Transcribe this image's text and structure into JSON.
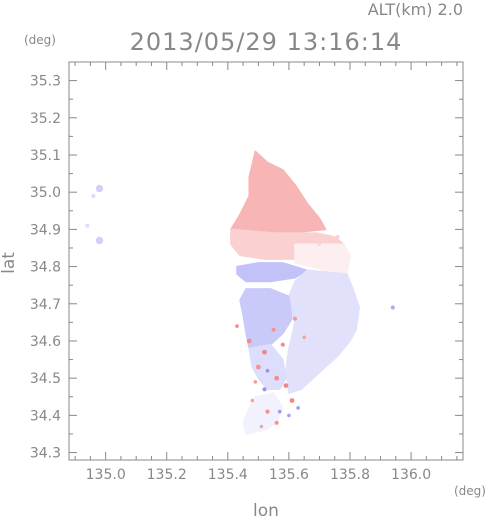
{
  "header": {
    "altitude_label": "ALT(km) 2.0",
    "timestamp": "2013/05/29 13:16:14"
  },
  "chart_data": {
    "type": "heatmap",
    "title": "2013/05/29 13:16:14",
    "subtitle": "ALT(km) 2.0",
    "xlabel": "lon",
    "ylabel": "lat",
    "x_unit": "(deg)",
    "y_unit": "(deg)",
    "xlim": [
      134.88,
      136.17
    ],
    "ylim": [
      34.28,
      35.35
    ],
    "x_ticks": [
      135.0,
      135.2,
      135.4,
      135.6,
      135.8,
      136.0
    ],
    "x_tick_labels": [
      "135.0",
      "135.2",
      "135.4",
      "135.6",
      "135.8",
      "136.0"
    ],
    "y_ticks": [
      34.3,
      34.4,
      34.5,
      34.6,
      34.7,
      34.8,
      34.9,
      35.0,
      35.1,
      35.2,
      35.3
    ],
    "y_tick_labels": [
      "34.3",
      "34.4",
      "34.5",
      "34.6",
      "34.7",
      "34.8",
      "34.9",
      "35.0",
      "35.1",
      "35.2",
      "35.3"
    ],
    "grid": false,
    "colors": {
      "positive": "#f28b8b",
      "negative": "#8b8bf2",
      "axis": "#888888"
    },
    "regions": [
      {
        "sign": "positive",
        "intensity": 0.55,
        "polygon": [
          [
            135.49,
            35.11
          ],
          [
            135.53,
            35.08
          ],
          [
            135.58,
            35.06
          ],
          [
            135.62,
            35.02
          ],
          [
            135.66,
            34.97
          ],
          [
            135.7,
            34.93
          ],
          [
            135.72,
            34.9
          ],
          [
            135.6,
            34.89
          ],
          [
            135.48,
            34.89
          ],
          [
            135.41,
            34.9
          ],
          [
            135.44,
            34.94
          ],
          [
            135.47,
            34.99
          ],
          [
            135.47,
            35.04
          ]
        ]
      },
      {
        "sign": "positive",
        "intensity": 0.35,
        "polygon": [
          [
            135.41,
            34.9
          ],
          [
            135.56,
            34.89
          ],
          [
            135.69,
            34.89
          ],
          [
            135.75,
            34.88
          ],
          [
            135.78,
            34.86
          ],
          [
            135.78,
            34.82
          ],
          [
            135.66,
            34.82
          ],
          [
            135.52,
            34.82
          ],
          [
            135.44,
            34.83
          ],
          [
            135.41,
            34.86
          ]
        ]
      },
      {
        "sign": "positive",
        "intensity": 0.12,
        "polygon": [
          [
            135.62,
            34.86
          ],
          [
            135.78,
            34.86
          ],
          [
            135.8,
            34.83
          ],
          [
            135.79,
            34.78
          ],
          [
            135.72,
            34.79
          ],
          [
            135.62,
            34.81
          ]
        ]
      },
      {
        "sign": "negative",
        "intensity": 0.45,
        "polygon": [
          [
            135.43,
            34.8
          ],
          [
            135.5,
            34.81
          ],
          [
            135.58,
            34.81
          ],
          [
            135.66,
            34.79
          ],
          [
            135.62,
            34.77
          ],
          [
            135.54,
            34.76
          ],
          [
            135.46,
            34.76
          ],
          [
            135.43,
            34.78
          ]
        ]
      },
      {
        "sign": "negative",
        "intensity": 0.22,
        "polygon": [
          [
            135.66,
            34.79
          ],
          [
            135.79,
            34.78
          ],
          [
            135.81,
            34.74
          ],
          [
            135.83,
            34.69
          ],
          [
            135.82,
            34.63
          ],
          [
            135.8,
            34.6
          ],
          [
            135.76,
            34.56
          ],
          [
            135.72,
            34.53
          ],
          [
            135.68,
            34.5
          ],
          [
            135.64,
            34.47
          ],
          [
            135.6,
            34.46
          ],
          [
            135.59,
            34.52
          ],
          [
            135.6,
            34.58
          ],
          [
            135.62,
            34.65
          ],
          [
            135.6,
            34.72
          ],
          [
            135.62,
            34.76
          ]
        ]
      },
      {
        "sign": "negative",
        "intensity": 0.4,
        "polygon": [
          [
            135.46,
            34.74
          ],
          [
            135.54,
            34.74
          ],
          [
            135.6,
            34.72
          ],
          [
            135.61,
            34.66
          ],
          [
            135.58,
            34.62
          ],
          [
            135.54,
            34.59
          ],
          [
            135.5,
            34.57
          ],
          [
            135.47,
            34.58
          ],
          [
            135.46,
            34.62
          ],
          [
            135.45,
            34.67
          ],
          [
            135.44,
            34.71
          ]
        ]
      },
      {
        "sign": "negative",
        "intensity": 0.25,
        "polygon": [
          [
            135.47,
            34.58
          ],
          [
            135.54,
            34.59
          ],
          [
            135.58,
            34.55
          ],
          [
            135.59,
            34.5
          ],
          [
            135.57,
            34.47
          ],
          [
            135.53,
            34.47
          ],
          [
            135.5,
            34.5
          ],
          [
            135.48,
            34.53
          ]
        ]
      },
      {
        "sign": "negative",
        "intensity": 0.1,
        "polygon": [
          [
            135.49,
            34.45
          ],
          [
            135.55,
            34.46
          ],
          [
            135.58,
            34.42
          ],
          [
            135.56,
            34.38
          ],
          [
            135.52,
            34.36
          ],
          [
            135.46,
            34.35
          ],
          [
            135.45,
            34.38
          ],
          [
            135.47,
            34.42
          ]
        ]
      }
    ],
    "cells": [
      {
        "x": 134.98,
        "y": 35.01,
        "r": 0.012,
        "sign": "negative",
        "intensity": 0.35
      },
      {
        "x": 134.96,
        "y": 34.99,
        "r": 0.007,
        "sign": "negative",
        "intensity": 0.25
      },
      {
        "x": 134.94,
        "y": 34.91,
        "r": 0.007,
        "sign": "negative",
        "intensity": 0.25
      },
      {
        "x": 134.98,
        "y": 34.87,
        "r": 0.012,
        "sign": "negative",
        "intensity": 0.35
      },
      {
        "x": 135.94,
        "y": 34.69,
        "r": 0.007,
        "sign": "negative",
        "intensity": 0.6
      },
      {
        "x": 135.43,
        "y": 34.64,
        "r": 0.006,
        "sign": "positive",
        "intensity": 0.9
      },
      {
        "x": 135.47,
        "y": 34.6,
        "r": 0.008,
        "sign": "positive",
        "intensity": 0.85
      },
      {
        "x": 135.52,
        "y": 34.57,
        "r": 0.008,
        "sign": "positive",
        "intensity": 0.9
      },
      {
        "x": 135.55,
        "y": 34.63,
        "r": 0.007,
        "sign": "positive",
        "intensity": 0.8
      },
      {
        "x": 135.58,
        "y": 34.59,
        "r": 0.007,
        "sign": "positive",
        "intensity": 0.85
      },
      {
        "x": 135.5,
        "y": 34.53,
        "r": 0.008,
        "sign": "positive",
        "intensity": 0.8
      },
      {
        "x": 135.53,
        "y": 34.52,
        "r": 0.006,
        "sign": "negative",
        "intensity": 0.8
      },
      {
        "x": 135.56,
        "y": 34.5,
        "r": 0.008,
        "sign": "positive",
        "intensity": 0.85
      },
      {
        "x": 135.59,
        "y": 34.48,
        "r": 0.008,
        "sign": "positive",
        "intensity": 0.9
      },
      {
        "x": 135.61,
        "y": 34.44,
        "r": 0.008,
        "sign": "positive",
        "intensity": 0.9
      },
      {
        "x": 135.63,
        "y": 34.42,
        "r": 0.006,
        "sign": "negative",
        "intensity": 0.75
      },
      {
        "x": 135.52,
        "y": 34.47,
        "r": 0.007,
        "sign": "negative",
        "intensity": 0.8
      },
      {
        "x": 135.49,
        "y": 34.49,
        "r": 0.006,
        "sign": "positive",
        "intensity": 0.75
      },
      {
        "x": 135.53,
        "y": 34.41,
        "r": 0.007,
        "sign": "positive",
        "intensity": 0.8
      },
      {
        "x": 135.57,
        "y": 34.41,
        "r": 0.006,
        "sign": "negative",
        "intensity": 0.75
      },
      {
        "x": 135.56,
        "y": 34.38,
        "r": 0.007,
        "sign": "positive",
        "intensity": 0.8
      },
      {
        "x": 135.6,
        "y": 34.4,
        "r": 0.006,
        "sign": "negative",
        "intensity": 0.7
      },
      {
        "x": 135.48,
        "y": 34.44,
        "r": 0.006,
        "sign": "positive",
        "intensity": 0.7
      },
      {
        "x": 135.51,
        "y": 34.37,
        "r": 0.006,
        "sign": "positive",
        "intensity": 0.65
      },
      {
        "x": 135.62,
        "y": 34.66,
        "r": 0.007,
        "sign": "positive",
        "intensity": 0.75
      },
      {
        "x": 135.65,
        "y": 34.61,
        "r": 0.006,
        "sign": "positive",
        "intensity": 0.7
      },
      {
        "x": 135.7,
        "y": 34.86,
        "r": 0.006,
        "sign": "positive",
        "intensity": 0.3
      },
      {
        "x": 135.76,
        "y": 34.88,
        "r": 0.006,
        "sign": "positive",
        "intensity": 0.35
      }
    ]
  }
}
